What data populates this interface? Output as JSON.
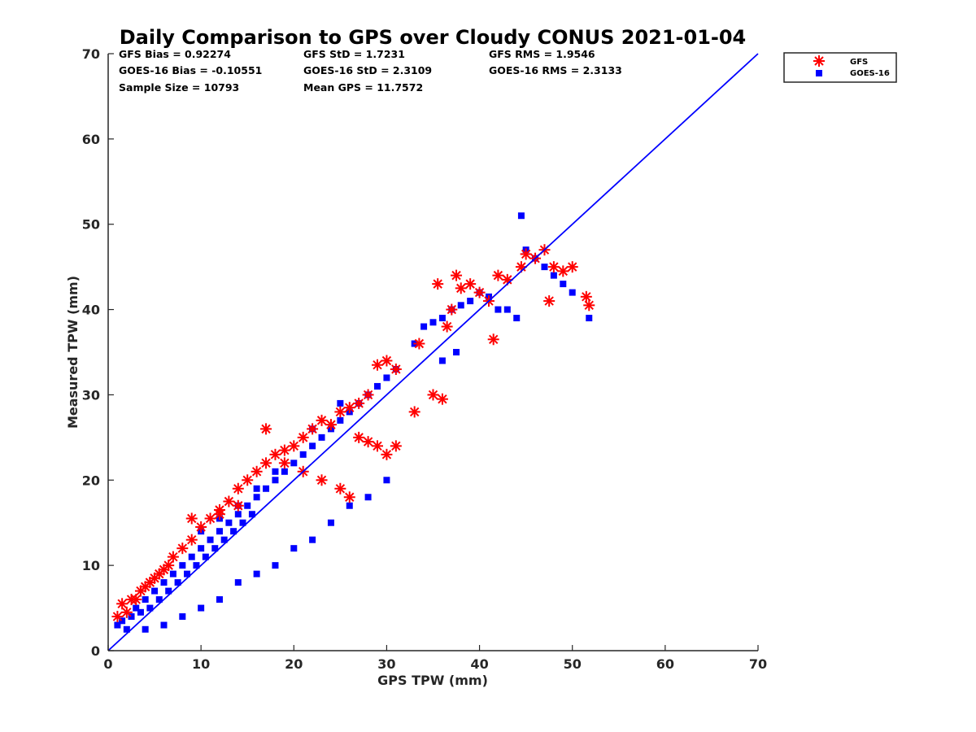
{
  "chart_data": {
    "type": "scatter",
    "title": "Daily Comparison to GPS over Cloudy CONUS 2021-01-04",
    "xlabel": "GPS TPW (mm)",
    "ylabel": "Measured TPW (mm)",
    "xlim": [
      0,
      70
    ],
    "ylim": [
      0,
      70
    ],
    "xticks": [
      "0",
      "10",
      "20",
      "30",
      "40",
      "50",
      "60",
      "70"
    ],
    "yticks": [
      "0",
      "10",
      "20",
      "30",
      "40",
      "50",
      "60",
      "70"
    ],
    "grid": false,
    "legend_position": "outside top-right",
    "stats": [
      [
        "GFS Bias = 0.92274",
        "GFS StD = 1.7231",
        "GFS RMS = 1.9546"
      ],
      [
        "GOES-16 Bias = -0.10551",
        "GOES-16 StD = 2.3109",
        "GOES-16 RMS = 2.3133"
      ],
      [
        "Sample Size = 10793",
        "Mean GPS = 11.7572",
        ""
      ]
    ],
    "reference_line": {
      "x": [
        0,
        70
      ],
      "y": [
        0,
        70
      ],
      "color": "#0000ff"
    },
    "series": [
      {
        "name": "GFS",
        "marker": "asterisk",
        "color": "#ff0000",
        "x": [
          1,
          1.5,
          2,
          2.5,
          3,
          3.5,
          4,
          4.5,
          5,
          5.5,
          6,
          6.5,
          7,
          8,
          9,
          10,
          11,
          12,
          13,
          14,
          15,
          16,
          17,
          18,
          19,
          20,
          21,
          22,
          23,
          24,
          25,
          26,
          27,
          28,
          29,
          30,
          31,
          9,
          12,
          14,
          17,
          19,
          21,
          23,
          25,
          26,
          27,
          28,
          29,
          30,
          31,
          33,
          33.5,
          35,
          35.5,
          36,
          36.5,
          37,
          37.5,
          38,
          39,
          40,
          41,
          41.5,
          42,
          43,
          44.5,
          45,
          46,
          47,
          48,
          49,
          50,
          51.5,
          51.8,
          47.5
        ],
        "y": [
          4,
          5.5,
          4.5,
          6,
          6,
          7,
          7.5,
          8,
          8.5,
          9,
          9.5,
          10,
          11,
          12,
          13,
          14.5,
          15.5,
          16.5,
          17.5,
          19,
          20,
          21,
          22,
          23,
          23.5,
          24,
          25,
          26,
          27,
          26.5,
          28,
          28.5,
          29,
          30,
          33.5,
          34,
          33,
          15.5,
          16,
          17,
          26,
          22,
          21,
          20,
          19,
          18,
          25,
          24.5,
          24,
          23,
          24,
          28,
          36,
          30,
          43,
          29.5,
          38,
          40,
          44,
          42.5,
          43,
          42,
          41,
          36.5,
          44,
          43.5,
          45,
          46.5,
          46,
          47,
          45,
          44.5,
          45,
          41.5,
          40.5,
          41
        ]
      },
      {
        "name": "GOES-16",
        "marker": "square",
        "color": "#0000ff",
        "x": [
          1,
          1.5,
          2,
          2.5,
          3,
          3.5,
          4,
          4.5,
          5,
          5.5,
          6,
          6.5,
          7,
          7.5,
          8,
          8.5,
          9,
          9.5,
          10,
          10.5,
          11,
          11.5,
          12,
          12.5,
          13,
          13.5,
          14,
          14.5,
          15,
          15.5,
          16,
          17,
          18,
          19,
          20,
          21,
          22,
          23,
          24,
          25,
          26,
          27,
          28,
          29,
          30,
          31,
          4,
          6,
          8,
          10,
          12,
          14,
          16,
          18,
          20,
          22,
          24,
          26,
          28,
          30,
          10,
          12,
          14,
          16,
          18,
          22,
          25,
          28,
          33,
          34,
          35,
          36,
          37,
          38,
          39,
          40,
          41,
          42,
          43,
          44,
          44.5,
          45,
          46,
          47,
          48,
          49,
          50,
          51.8,
          37.5,
          36
        ],
        "y": [
          3,
          3.5,
          2.5,
          4,
          5,
          4.5,
          6,
          5,
          7,
          6,
          8,
          7,
          9,
          8,
          10,
          9,
          11,
          10,
          12,
          11,
          13,
          12,
          14,
          13,
          15,
          14,
          16,
          15,
          17,
          16,
          18,
          19,
          20,
          21,
          22,
          23,
          24,
          25,
          26,
          27,
          28,
          29,
          30,
          31,
          32,
          33,
          2.5,
          3,
          4,
          5,
          6,
          8,
          9,
          10,
          12,
          13,
          15,
          17,
          18,
          20,
          14,
          15.5,
          17,
          19,
          21,
          26,
          29,
          30,
          36,
          38,
          38.5,
          39,
          40,
          40.5,
          41,
          42,
          41.5,
          40,
          40,
          39,
          51,
          47,
          46,
          45,
          44,
          43,
          42,
          39,
          35,
          34
        ]
      }
    ]
  }
}
